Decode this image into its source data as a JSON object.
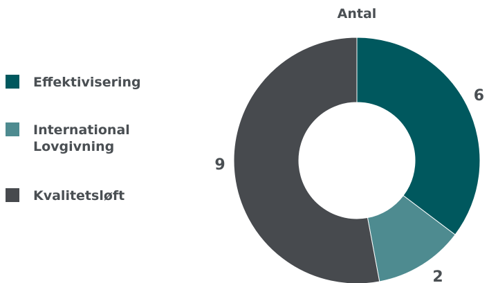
{
  "chart_data": {
    "type": "pie",
    "variant": "donut",
    "title": "Antal",
    "categories": [
      "Effektivisering",
      "International Lovgivning",
      "Kvalitetsløft"
    ],
    "values": [
      6,
      2,
      9
    ],
    "data_labels": [
      "6",
      "2",
      "9"
    ],
    "colors": [
      "#00585e",
      "#4e8b90",
      "#474a4e"
    ],
    "legend": {
      "placement": "left",
      "entries": [
        {
          "label": "Effektivisering",
          "color": "#00585e"
        },
        {
          "label": "International Lovgivning",
          "color": "#4e8b90"
        },
        {
          "label": "Kvalitetsløft",
          "color": "#474a4e"
        }
      ]
    }
  }
}
